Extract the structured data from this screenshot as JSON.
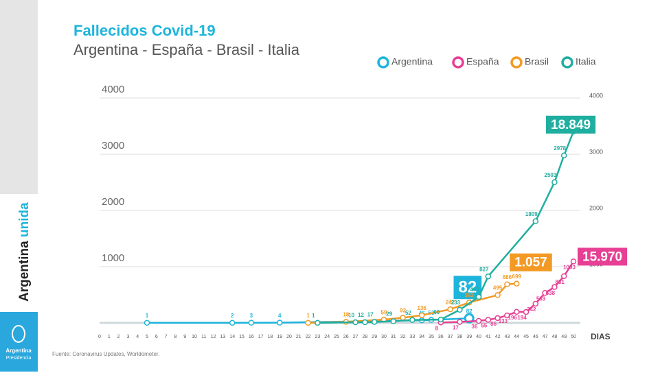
{
  "chart_data": {
    "type": "line",
    "title": "Fallecidos Covid-19",
    "subtitle": "Argentina - España - Brasil - Italia",
    "x_label": "DIAS",
    "source": "Fuente: Coronavirus Updates, Worldometer.",
    "sidebar_text": [
      "Argentina",
      "unida"
    ],
    "logo_text": [
      "Argentina",
      "Presidencia"
    ],
    "xlim": [
      0,
      50
    ],
    "xticks": [
      0,
      1,
      2,
      3,
      4,
      5,
      6,
      7,
      8,
      9,
      10,
      11,
      12,
      13,
      14,
      15,
      16,
      17,
      18,
      19,
      20,
      21,
      22,
      23,
      24,
      25,
      26,
      27,
      28,
      29,
      30,
      31,
      32,
      33,
      34,
      35,
      36,
      37,
      38,
      39,
      40,
      41,
      42,
      43,
      44,
      45,
      46,
      47,
      48,
      49,
      50
    ],
    "ylim": [
      0,
      4000
    ],
    "yticks": [
      1000,
      2000,
      3000,
      4000
    ],
    "y2lim": [
      0,
      4000
    ],
    "y2ticks": [
      1000,
      2000,
      3000,
      4000
    ],
    "grid": true,
    "series": [
      {
        "name": "Argentina",
        "color": "#1db5dc",
        "total_label": "82",
        "x": [
          5,
          14,
          16,
          19,
          34,
          35,
          39
        ],
        "values": [
          1,
          2,
          3,
          4,
          46,
          53,
          82
        ]
      },
      {
        "name": "España",
        "color": "#e63f94",
        "total_label": "15.970",
        "x": [
          36,
          38,
          40,
          41,
          42,
          43,
          44,
          45,
          46,
          47,
          48,
          49,
          50
        ],
        "values": [
          8,
          17,
          36,
          55,
          86,
          133,
          196,
          194,
          342,
          533,
          638,
          831,
          1093
        ]
      },
      {
        "name": "Brasil",
        "color": "#f39a24",
        "total_label": "1.057",
        "x": [
          22,
          26,
          30,
          32,
          34,
          37,
          39,
          42,
          43,
          44
        ],
        "values": [
          1,
          18,
          59,
          92,
          136,
          242,
          363,
          495,
          686,
          699
        ]
      },
      {
        "name": "Italia",
        "color": "#1fae9f",
        "total_label": "18.849",
        "x": [
          23,
          27,
          28,
          29,
          31,
          33,
          36,
          38,
          40,
          41,
          46,
          48,
          49,
          50
        ],
        "values": [
          1,
          10,
          12,
          17,
          29,
          52,
          60,
          233,
          463,
          827,
          1809,
          2503,
          2978,
          3405
        ]
      }
    ]
  }
}
